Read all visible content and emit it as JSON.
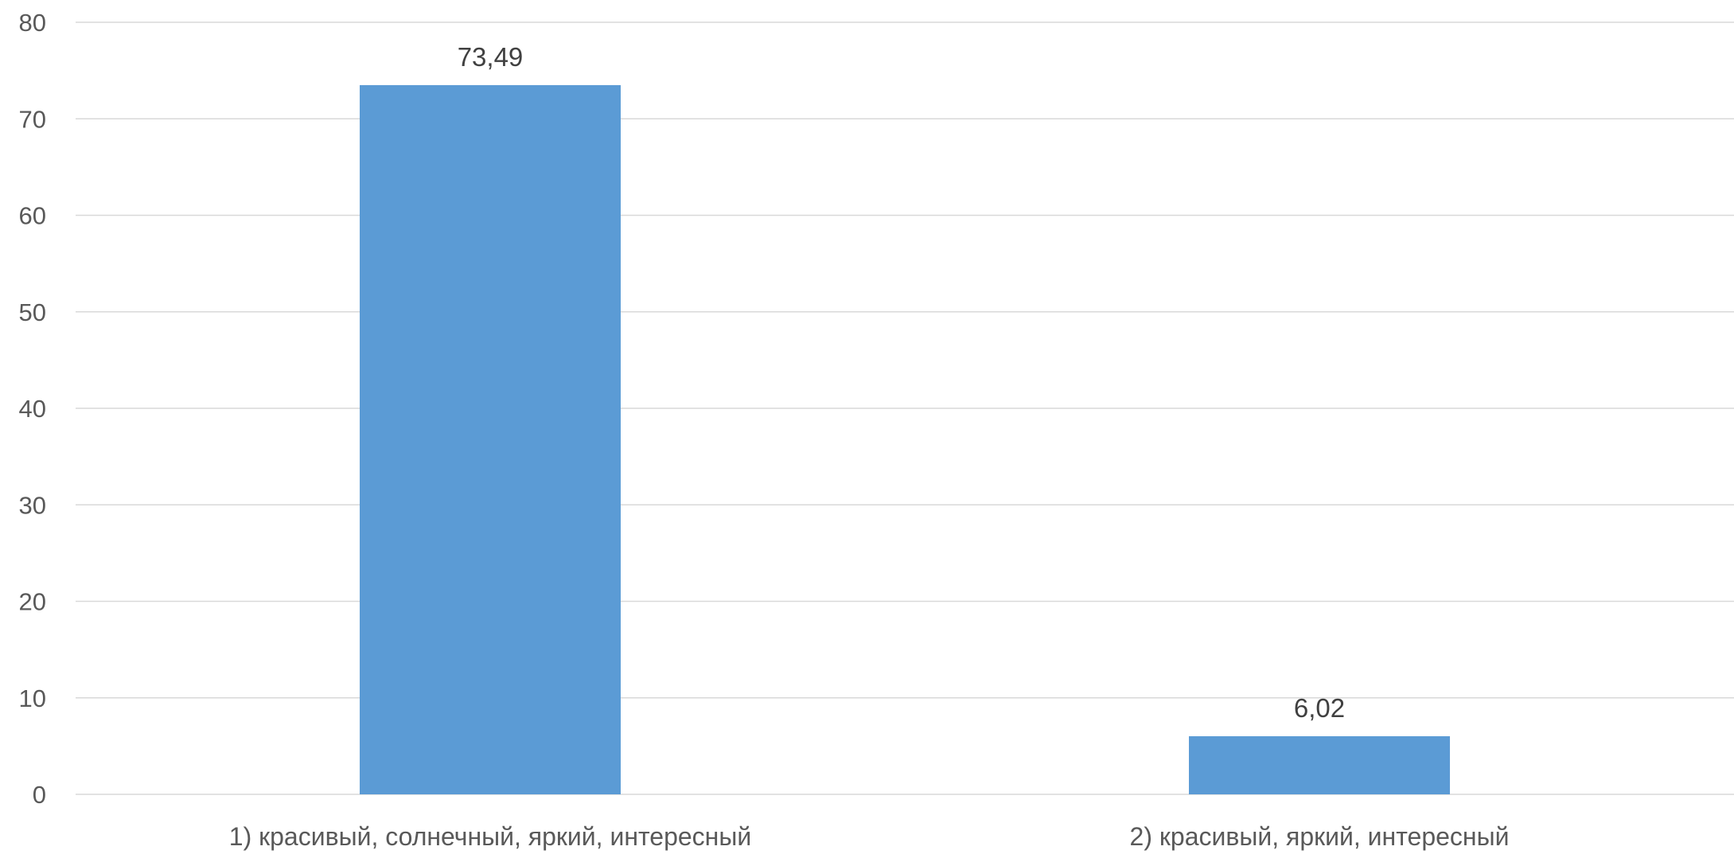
{
  "chart_data": {
    "type": "bar",
    "categories": [
      "1) красивый, солнечный, яркий, интересный",
      "2) красивый, яркий, интересный"
    ],
    "values": [
      73.49,
      6.02
    ],
    "data_labels": [
      "73,49",
      "6,02"
    ],
    "ylim": [
      0,
      80
    ],
    "y_ticks": [
      0,
      10,
      20,
      30,
      40,
      50,
      60,
      70,
      80
    ],
    "grid": true,
    "legend": "none",
    "title": "",
    "xlabel": "",
    "ylabel": "",
    "colors": {
      "bar": "#5B9BD5",
      "grid": "#D9D9D9",
      "text": "#595959",
      "data_label": "#404040"
    }
  }
}
